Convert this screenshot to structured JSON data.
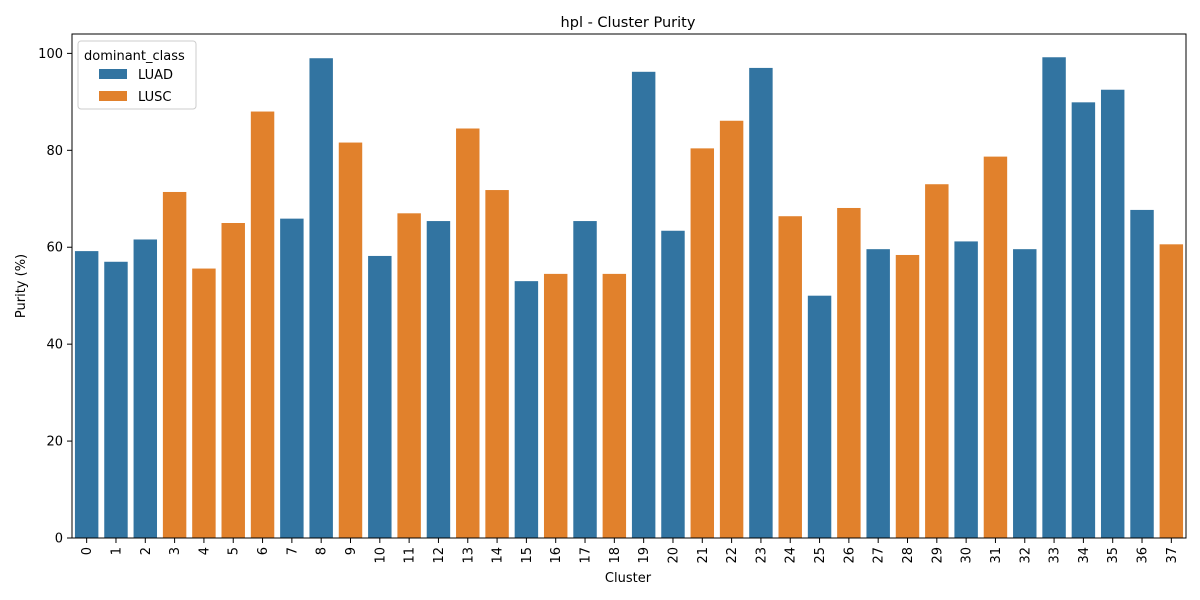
{
  "chart_data": {
    "type": "bar",
    "title": "hpl - Cluster Purity",
    "xlabel": "Cluster",
    "ylabel": "Purity (%)",
    "ylim": [
      0,
      104
    ],
    "yticks": [
      0,
      20,
      40,
      60,
      80,
      100
    ],
    "grid": false,
    "legend": {
      "title": "dominant_class",
      "placement": "top-left",
      "entries": [
        {
          "name": "LUAD",
          "color": "#3274a1"
        },
        {
          "name": "LUSC",
          "color": "#e1812c"
        }
      ]
    },
    "categories": [
      "0",
      "1",
      "2",
      "3",
      "4",
      "5",
      "6",
      "7",
      "8",
      "9",
      "10",
      "11",
      "12",
      "13",
      "14",
      "15",
      "16",
      "17",
      "18",
      "19",
      "20",
      "21",
      "22",
      "23",
      "24",
      "25",
      "26",
      "27",
      "28",
      "29",
      "30",
      "31",
      "32",
      "33",
      "34",
      "35",
      "36",
      "37"
    ],
    "values": [
      59.2,
      57.0,
      61.6,
      71.4,
      55.6,
      65.0,
      88.0,
      65.9,
      99.0,
      81.6,
      58.2,
      67.0,
      65.4,
      84.5,
      71.8,
      53.0,
      54.5,
      65.4,
      54.5,
      96.2,
      63.4,
      80.4,
      86.1,
      97.0,
      66.4,
      50.0,
      68.1,
      59.6,
      58.4,
      73.0,
      61.2,
      78.7,
      59.6,
      99.2,
      89.9,
      92.5,
      67.7,
      60.6
    ],
    "dominant_class": [
      "LUAD",
      "LUAD",
      "LUAD",
      "LUSC",
      "LUSC",
      "LUSC",
      "LUSC",
      "LUAD",
      "LUAD",
      "LUSC",
      "LUAD",
      "LUSC",
      "LUAD",
      "LUSC",
      "LUSC",
      "LUAD",
      "LUSC",
      "LUAD",
      "LUSC",
      "LUAD",
      "LUAD",
      "LUSC",
      "LUSC",
      "LUAD",
      "LUSC",
      "LUAD",
      "LUSC",
      "LUAD",
      "LUSC",
      "LUSC",
      "LUAD",
      "LUSC",
      "LUAD",
      "LUAD",
      "LUAD",
      "LUAD",
      "LUAD",
      "LUSC"
    ]
  }
}
